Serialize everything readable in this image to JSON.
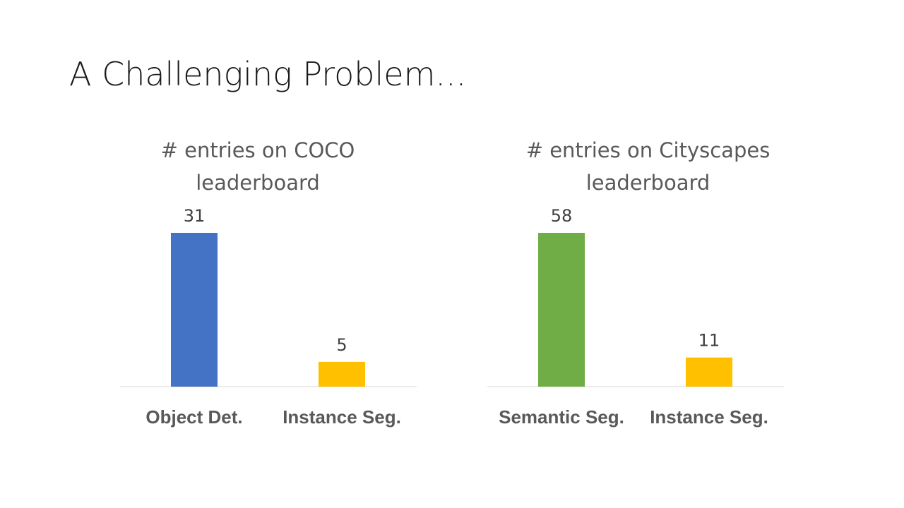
{
  "slide": {
    "title": "A Challenging Problem..."
  },
  "chart_data": [
    {
      "type": "bar",
      "title": "# entries on COCO leaderboard",
      "title_lines": [
        "# entries on COCO",
        "leaderboard"
      ],
      "categories": [
        "Object Det.",
        "Instance Seg."
      ],
      "values": [
        31,
        5
      ],
      "colors": [
        "#4472C4",
        "#FFC000"
      ],
      "ylim": [
        0,
        31
      ],
      "grid": false,
      "legend": "none"
    },
    {
      "type": "bar",
      "title": "# entries on Cityscapes leaderboard",
      "title_lines": [
        "# entries on Cityscapes",
        "leaderboard"
      ],
      "categories": [
        "Semantic Seg.",
        "Instance Seg."
      ],
      "values": [
        58,
        11
      ],
      "colors": [
        "#70AD47",
        "#FFC000"
      ],
      "ylim": [
        0,
        58
      ],
      "grid": false,
      "legend": "none"
    }
  ]
}
